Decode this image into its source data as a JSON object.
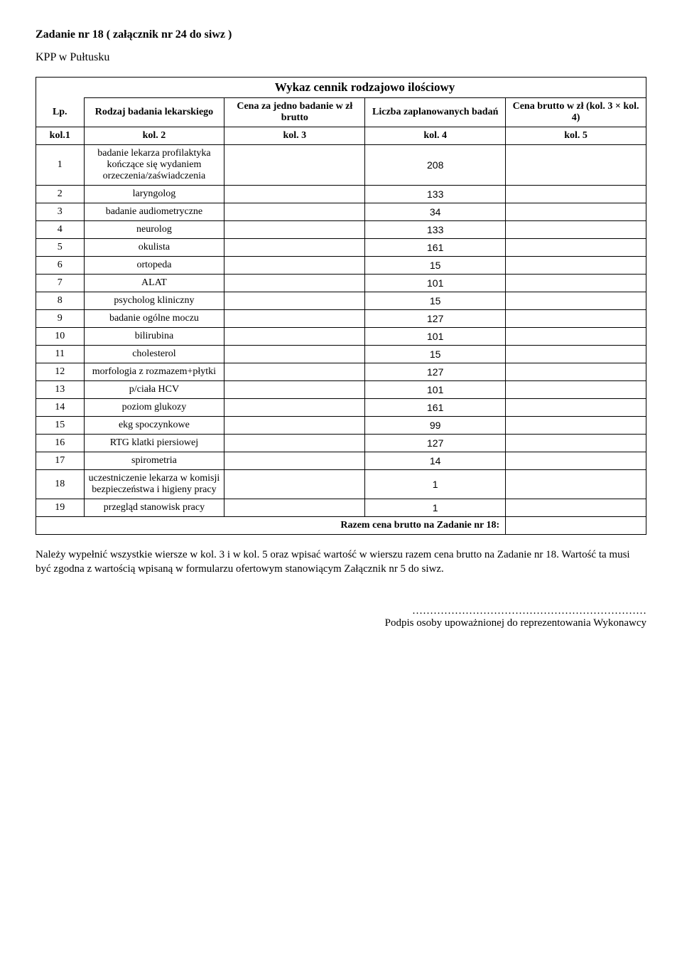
{
  "title": "Zadanie nr 18   ( załącznik nr 24 do siwz )",
  "subtitle": "KPP w Pułtusku",
  "heading": "Wykaz cennik rodzajowo ilościowy",
  "headers": {
    "lp": "Lp.",
    "rodzaj": "Rodzaj badania lekarskiego",
    "cena": "Cena za jedno badanie w zł brutto",
    "liczba": "Liczba zaplanowanych badań",
    "brutto": "Cena brutto w zł (kol. 3 × kol. 4)"
  },
  "kol_row": {
    "c1": "kol.1",
    "c2": "kol. 2",
    "c3": "kol. 3",
    "c4": "kol. 4",
    "c5": "kol. 5"
  },
  "rows": [
    {
      "lp": "1",
      "name": "badanie lekarza profilaktyka kończące się wydaniem orzeczenia/zaświadczenia",
      "val": "208"
    },
    {
      "lp": "2",
      "name": "laryngolog",
      "val": "133"
    },
    {
      "lp": "3",
      "name": "badanie audiometryczne",
      "val": "34"
    },
    {
      "lp": "4",
      "name": "neurolog",
      "val": "133"
    },
    {
      "lp": "5",
      "name": "okulista",
      "val": "161"
    },
    {
      "lp": "6",
      "name": "ortopeda",
      "val": "15"
    },
    {
      "lp": "7",
      "name": "ALAT",
      "val": "101"
    },
    {
      "lp": "8",
      "name": "psycholog kliniczny",
      "val": "15"
    },
    {
      "lp": "9",
      "name": "badanie ogólne moczu",
      "val": "127"
    },
    {
      "lp": "10",
      "name": "bilirubina",
      "val": "101"
    },
    {
      "lp": "11",
      "name": "cholesterol",
      "val": "15"
    },
    {
      "lp": "12",
      "name": "morfologia z rozmazem+płytki",
      "val": "127"
    },
    {
      "lp": "13",
      "name": "p/ciała HCV",
      "val": "101"
    },
    {
      "lp": "14",
      "name": "poziom glukozy",
      "val": "161"
    },
    {
      "lp": "15",
      "name": "ekg spoczynkowe",
      "val": "99"
    },
    {
      "lp": "16",
      "name": "RTG klatki piersiowej",
      "val": "127"
    },
    {
      "lp": "17",
      "name": "spirometria",
      "val": "14"
    },
    {
      "lp": "18",
      "name": "uczestniczenie lekarza w komisji bezpieczeństwa i higieny pracy",
      "val": "1"
    },
    {
      "lp": "19",
      "name": "przegląd stanowisk pracy",
      "val": "1"
    }
  ],
  "razem": "Razem cena brutto na Zadanie nr 18:",
  "footer": "Należy wypełnić wszystkie wiersze w kol. 3 i w kol. 5 oraz wpisać wartość w wierszu razem cena brutto na Zadanie nr 18. Wartość ta musi być zgodna z wartością wpisaną w formularzu ofertowym stanowiącym Załącznik nr 5 do siwz.",
  "sig_dots": "…………………………………………………………",
  "sig_label": "Podpis osoby upoważnionej do reprezentowania Wykonawcy"
}
